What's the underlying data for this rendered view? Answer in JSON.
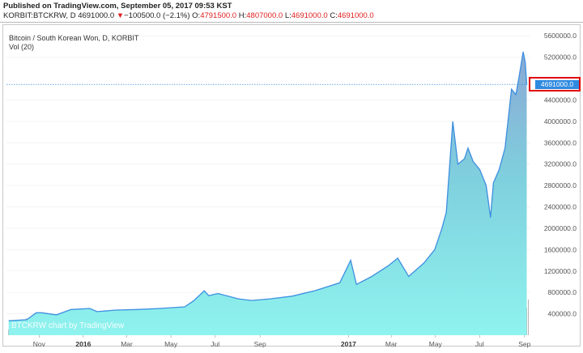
{
  "header": {
    "published": "Published on TradingView.com, September 05, 2017 09:53 KST",
    "symbol": "KORBIT:BTCKRW, D",
    "last": "4691000.0",
    "change_arrow": "▼",
    "change": "−100500.0 (−2.1%)",
    "o_label": "O:",
    "o": "4791500.0",
    "h_label": "H:",
    "h": "4807000.0",
    "l_label": "L:",
    "l": "4691000.0",
    "c_label": "C:",
    "c": "4691000.0"
  },
  "chart_title": "Bitcoin / South Korean Won, D, KORBIT",
  "vol_label": "Vol (20)",
  "watermark": "BTCKRW chart by TradingView",
  "price_label": "4691000.0",
  "colors": {
    "line": "#3d8fe0",
    "area_top": "#8fbfd8",
    "area_bottom": "#8ff0ee",
    "volume": "#b0a4a4",
    "price_tag": "#2f8ae0",
    "highlight": "#e00000"
  },
  "chart_data": {
    "type": "area",
    "title": "Bitcoin / South Korean Won, D, KORBIT",
    "x_ticks": [
      "Nov",
      "2016",
      "Mar",
      "May",
      "Jul",
      "Sep",
      "2017",
      "Mar",
      "May",
      "Jul",
      "Sep"
    ],
    "y_ticks": [
      "400000.0",
      "800000.0",
      "1200000.0",
      "1600000.0",
      "2000000.0",
      "2400000.0",
      "2800000.0",
      "3200000.0",
      "3600000.0",
      "4000000.0",
      "4400000.0",
      "5200000.0",
      "5600000.0"
    ],
    "ylim": [
      0,
      5800000
    ],
    "series": [
      {
        "values": [
          [
            "2015-09-20",
            270000
          ],
          [
            "2015-10-15",
            290000
          ],
          [
            "2015-10-28",
            420000
          ],
          [
            "2015-11-05",
            420000
          ],
          [
            "2015-11-25",
            380000
          ],
          [
            "2015-12-15",
            480000
          ],
          [
            "2016-01-10",
            500000
          ],
          [
            "2016-01-20",
            440000
          ],
          [
            "2016-02-15",
            470000
          ],
          [
            "2016-03-15",
            480000
          ],
          [
            "2016-04-15",
            500000
          ],
          [
            "2016-05-20",
            530000
          ],
          [
            "2016-06-01",
            640000
          ],
          [
            "2016-06-16",
            830000
          ],
          [
            "2016-06-22",
            740000
          ],
          [
            "2016-07-05",
            780000
          ],
          [
            "2016-08-02",
            680000
          ],
          [
            "2016-08-20",
            650000
          ],
          [
            "2016-09-15",
            680000
          ],
          [
            "2016-10-15",
            730000
          ],
          [
            "2016-11-15",
            830000
          ],
          [
            "2016-12-20",
            980000
          ],
          [
            "2017-01-04",
            1400000
          ],
          [
            "2017-01-12",
            950000
          ],
          [
            "2017-02-01",
            1090000
          ],
          [
            "2017-02-25",
            1300000
          ],
          [
            "2017-03-10",
            1440000
          ],
          [
            "2017-03-25",
            1100000
          ],
          [
            "2017-04-15",
            1350000
          ],
          [
            "2017-04-30",
            1600000
          ],
          [
            "2017-05-10",
            2000000
          ],
          [
            "2017-05-16",
            2300000
          ],
          [
            "2017-05-25",
            4000000
          ],
          [
            "2017-06-01",
            3200000
          ],
          [
            "2017-06-10",
            3300000
          ],
          [
            "2017-06-15",
            3500000
          ],
          [
            "2017-06-22",
            3250000
          ],
          [
            "2017-07-01",
            3100000
          ],
          [
            "2017-07-10",
            2800000
          ],
          [
            "2017-07-16",
            2200000
          ],
          [
            "2017-07-20",
            2850000
          ],
          [
            "2017-07-28",
            3100000
          ],
          [
            "2017-08-05",
            3500000
          ],
          [
            "2017-08-14",
            4600000
          ],
          [
            "2017-08-20",
            4500000
          ],
          [
            "2017-08-24",
            4800000
          ],
          [
            "2017-08-30",
            5300000
          ],
          [
            "2017-09-02",
            5100000
          ],
          [
            "2017-09-04",
            4691000
          ]
        ]
      }
    ],
    "volume_note": "Vol (20) bars shown at bottom"
  }
}
